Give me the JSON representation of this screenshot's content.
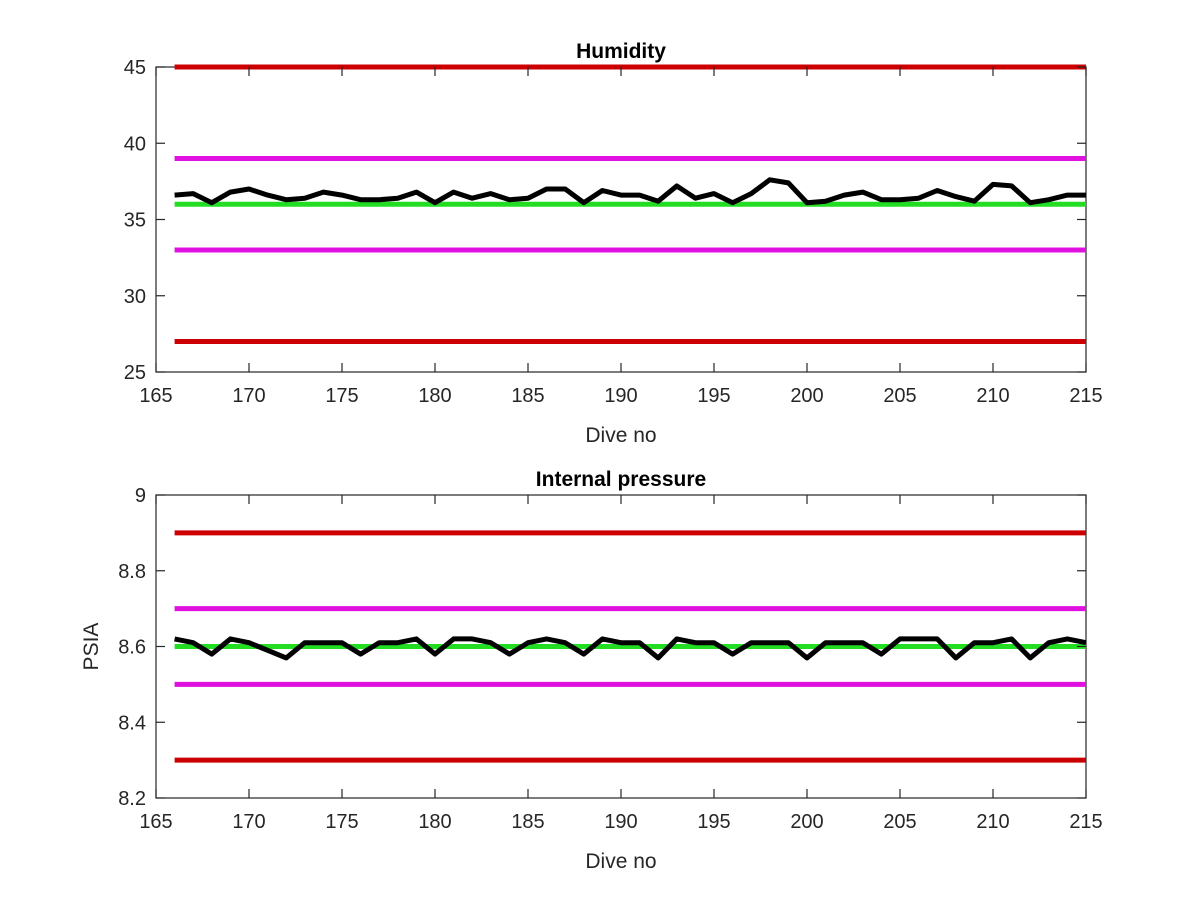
{
  "chart_data": [
    {
      "type": "line",
      "title": "Humidity",
      "xlabel": "Dive no",
      "ylabel": "",
      "xlim": [
        165,
        215
      ],
      "ylim": [
        25,
        45
      ],
      "xticks": [
        165,
        170,
        175,
        180,
        185,
        190,
        195,
        200,
        205,
        210,
        215
      ],
      "yticks": [
        25,
        30,
        35,
        40,
        45
      ],
      "grid": false,
      "series": [
        {
          "color": "#000000",
          "x": [
            166,
            167,
            168,
            169,
            170,
            171,
            172,
            173,
            174,
            175,
            176,
            177,
            178,
            179,
            180,
            181,
            182,
            183,
            184,
            185,
            186,
            187,
            188,
            189,
            190,
            191,
            192,
            193,
            194,
            195,
            196,
            197,
            198,
            199,
            200,
            201,
            202,
            203,
            204,
            205,
            206,
            207,
            208,
            209,
            210,
            211,
            212,
            213,
            214,
            215
          ],
          "values": [
            36.6,
            36.7,
            36.1,
            36.8,
            37.0,
            36.6,
            36.3,
            36.4,
            36.8,
            36.6,
            36.3,
            36.3,
            36.4,
            36.8,
            36.1,
            36.8,
            36.4,
            36.7,
            36.3,
            36.4,
            37.0,
            37.0,
            36.1,
            36.9,
            36.6,
            36.6,
            36.2,
            37.2,
            36.4,
            36.7,
            36.1,
            36.7,
            37.6,
            37.4,
            36.1,
            36.2,
            36.6,
            36.8,
            36.3,
            36.3,
            36.4,
            36.9,
            36.5,
            36.2,
            37.3,
            37.2,
            36.1,
            36.3,
            36.6,
            36.6
          ]
        }
      ],
      "reference_lines": [
        {
          "y": 45,
          "color": "#cc0000"
        },
        {
          "y": 39,
          "color": "#e010e0"
        },
        {
          "y": 36,
          "color": "#22dd22"
        },
        {
          "y": 33,
          "color": "#e010e0"
        },
        {
          "y": 27,
          "color": "#cc0000"
        }
      ]
    },
    {
      "type": "line",
      "title": "Internal pressure",
      "xlabel": "Dive no",
      "ylabel": "PSIA",
      "xlim": [
        165,
        215
      ],
      "ylim": [
        8.2,
        9
      ],
      "xticks": [
        165,
        170,
        175,
        180,
        185,
        190,
        195,
        200,
        205,
        210,
        215
      ],
      "yticks": [
        "8.2",
        "8.4",
        "8.6",
        "8.8",
        "9"
      ],
      "yticks_values": [
        8.2,
        8.4,
        8.6,
        8.8,
        9
      ],
      "grid": false,
      "series": [
        {
          "color": "#000000",
          "x": [
            166,
            167,
            168,
            169,
            170,
            171,
            172,
            173,
            174,
            175,
            176,
            177,
            178,
            179,
            180,
            181,
            182,
            183,
            184,
            185,
            186,
            187,
            188,
            189,
            190,
            191,
            192,
            193,
            194,
            195,
            196,
            197,
            198,
            199,
            200,
            201,
            202,
            203,
            204,
            205,
            206,
            207,
            208,
            209,
            210,
            211,
            212,
            213,
            214,
            215
          ],
          "values": [
            8.62,
            8.61,
            8.58,
            8.62,
            8.61,
            8.59,
            8.57,
            8.61,
            8.61,
            8.61,
            8.58,
            8.61,
            8.61,
            8.62,
            8.58,
            8.62,
            8.62,
            8.61,
            8.58,
            8.61,
            8.62,
            8.61,
            8.58,
            8.62,
            8.61,
            8.61,
            8.57,
            8.62,
            8.61,
            8.61,
            8.58,
            8.61,
            8.61,
            8.61,
            8.57,
            8.61,
            8.61,
            8.61,
            8.58,
            8.62,
            8.62,
            8.62,
            8.57,
            8.61,
            8.61,
            8.62,
            8.57,
            8.61,
            8.62,
            8.61
          ]
        }
      ],
      "reference_lines": [
        {
          "y": 8.9,
          "color": "#cc0000"
        },
        {
          "y": 8.7,
          "color": "#e010e0"
        },
        {
          "y": 8.6,
          "color": "#22dd22"
        },
        {
          "y": 8.5,
          "color": "#e010e0"
        },
        {
          "y": 8.3,
          "color": "#cc0000"
        }
      ]
    }
  ]
}
